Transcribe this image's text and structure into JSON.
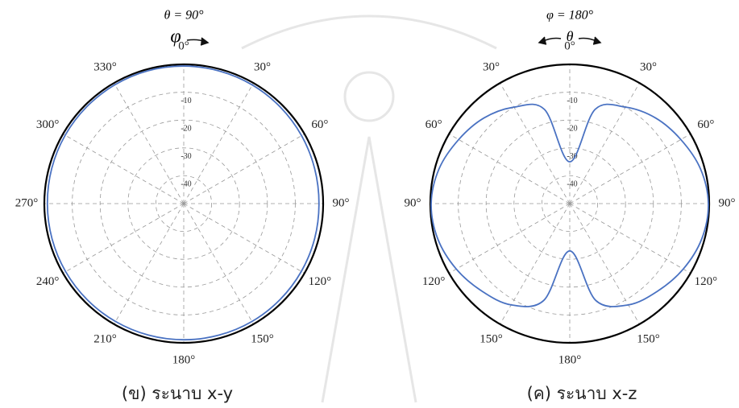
{
  "chart_data": [
    {
      "type": "polar",
      "annotations": [
        "θ = 90°",
        "φ"
      ],
      "caption": "(ข) ระนาบ x-y",
      "theta": [
        0,
        15,
        30,
        45,
        60,
        75,
        90,
        105,
        120,
        135,
        150,
        165,
        180,
        195,
        210,
        225,
        240,
        255,
        270,
        285,
        300,
        315,
        330,
        345
      ],
      "series": [
        {
          "color": "#4a72c2",
          "values": [
            -0.6,
            -0.7,
            -0.8,
            -1,
            -1.2,
            -1.4,
            -1.5,
            -1.4,
            -1.3,
            -1.2,
            -1.1,
            -1.1,
            -1.1,
            -1.1,
            -1.1,
            -1.1,
            -1.1,
            -1.1,
            -1.1,
            -1,
            -0.9,
            -0.8,
            -0.7,
            -0.6
          ]
        }
      ],
      "rlim": [
        -50,
        0
      ],
      "rticks": [
        -40,
        -30,
        -20,
        -10
      ],
      "grid": true,
      "zero_location": "top",
      "direction": "clockwise",
      "angle_ticks": [
        {
          "value": 0,
          "label": "0°"
        },
        {
          "value": 30,
          "label": "30°"
        },
        {
          "value": 60,
          "label": "60°"
        },
        {
          "value": 90,
          "label": "90°"
        },
        {
          "value": 120,
          "label": "120°"
        },
        {
          "value": 150,
          "label": "150°"
        },
        {
          "value": 180,
          "label": "180°"
        },
        {
          "value": 210,
          "label": "210°"
        },
        {
          "value": 240,
          "label": "240°"
        },
        {
          "value": 270,
          "label": "270°"
        },
        {
          "value": 300,
          "label": "300°"
        },
        {
          "value": 330,
          "label": "330°"
        }
      ]
    },
    {
      "type": "polar",
      "annotations": [
        "φ = 180°",
        "θ"
      ],
      "caption": "(ค) ระนาบ x-z",
      "theta": [
        0,
        15,
        30,
        45,
        60,
        75,
        90,
        105,
        120,
        135,
        150,
        165,
        180,
        195,
        210,
        225,
        240,
        255,
        270,
        285,
        300,
        315,
        330,
        345
      ],
      "series": [
        {
          "color": "#4a72c2",
          "values": [
            -35,
            -15,
            -10,
            -6.5,
            -4,
            -1.5,
            -0.3,
            -1,
            -3,
            -5.5,
            -8,
            -14,
            -33,
            -14,
            -8,
            -5.5,
            -3,
            -1,
            -0.3,
            -1.5,
            -4,
            -6.5,
            -10,
            -15
          ]
        }
      ],
      "rlim": [
        -50,
        0
      ],
      "rticks": [
        -40,
        -30,
        -20,
        -10
      ],
      "grid": true,
      "zero_location": "top",
      "direction": "clockwise",
      "angle_ticks": [
        {
          "value": 0,
          "label": "0°"
        },
        {
          "value": 30,
          "label": "30°"
        },
        {
          "value": 60,
          "label": "60°"
        },
        {
          "value": 90,
          "label": "90°"
        },
        {
          "value": 120,
          "label": "120°"
        },
        {
          "value": 150,
          "label": "150°"
        },
        {
          "value": 180,
          "label": "180°"
        },
        {
          "value": 210,
          "label": "150°"
        },
        {
          "value": 240,
          "label": "120°"
        },
        {
          "value": 270,
          "label": "90°"
        },
        {
          "value": 300,
          "label": "60°"
        },
        {
          "value": 330,
          "label": "30°"
        }
      ]
    }
  ]
}
